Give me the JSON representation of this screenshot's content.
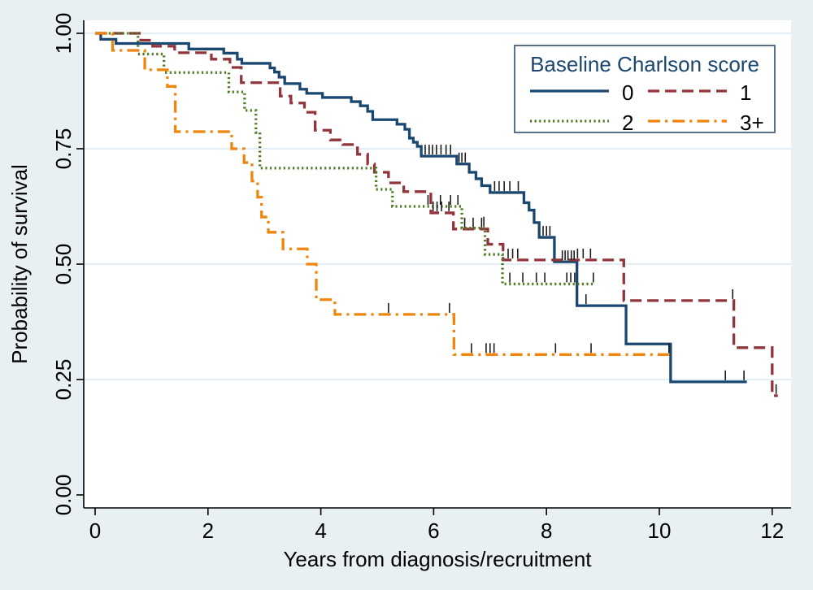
{
  "figure": {
    "background_color": "#e9f0f3",
    "plot_background": "#ffffff",
    "gridline_color": "#dae7f1",
    "axis_color": "#000000",
    "censor_mark_color": "#1c1c1c",
    "legend_border_color": "#5b718a"
  },
  "chart_data": {
    "type": "line",
    "subtype": "kaplan-meier-survival-step",
    "title": "",
    "xlabel": "Years from diagnosis/recruitment",
    "ylabel": "Probability of survival",
    "xlim": [
      0,
      12.4
    ],
    "ylim": [
      0,
      1
    ],
    "xticks": [
      0,
      2,
      4,
      6,
      8,
      10,
      12
    ],
    "yticks": [
      0,
      0.25,
      0.5,
      0.75,
      1
    ],
    "ytick_labels": [
      "0.00",
      "0.25",
      "0.50",
      "0.75",
      "1.00"
    ],
    "grid": "horizontal gridlines at 0.25, 0.50, 0.75, 1.00",
    "legend": {
      "title": "Baseline Charlson score",
      "position": "top-right",
      "entries": [
        "0",
        "1",
        "2",
        "3+"
      ]
    },
    "series": [
      {
        "name": "0",
        "color": "#1a476f",
        "dash": "solid",
        "end_time": 11.55,
        "points": [
          [
            0,
            1
          ],
          [
            0.1,
            0.987
          ],
          [
            0.37,
            0.978
          ],
          [
            1.66,
            0.966
          ],
          [
            2.28,
            0.957
          ],
          [
            2.52,
            0.944
          ],
          [
            2.6,
            0.935
          ],
          [
            3.1,
            0.925
          ],
          [
            3.18,
            0.916
          ],
          [
            3.26,
            0.905
          ],
          [
            3.36,
            0.891
          ],
          [
            3.63,
            0.879
          ],
          [
            3.75,
            0.87
          ],
          [
            4.03,
            0.861
          ],
          [
            4.54,
            0.852
          ],
          [
            4.7,
            0.843
          ],
          [
            4.83,
            0.831
          ],
          [
            4.92,
            0.813
          ],
          [
            5.35,
            0.803
          ],
          [
            5.49,
            0.792
          ],
          [
            5.57,
            0.773
          ],
          [
            5.64,
            0.764
          ],
          [
            5.71,
            0.755
          ],
          [
            5.78,
            0.734
          ],
          [
            6.41,
            0.717
          ],
          [
            6.63,
            0.699
          ],
          [
            6.75,
            0.685
          ],
          [
            6.85,
            0.67
          ],
          [
            7.0,
            0.655
          ],
          [
            7.6,
            0.633
          ],
          [
            7.69,
            0.617
          ],
          [
            7.78,
            0.59
          ],
          [
            7.87,
            0.558
          ],
          [
            8.14,
            0.505
          ],
          [
            8.54,
            0.41
          ],
          [
            9.41,
            0.327
          ],
          [
            10.2,
            0.245
          ]
        ],
        "censor_marks": [
          [
            5.85,
            0.734
          ],
          [
            5.92,
            0.734
          ],
          [
            5.98,
            0.734
          ],
          [
            6.05,
            0.734
          ],
          [
            6.13,
            0.734
          ],
          [
            6.22,
            0.734
          ],
          [
            6.3,
            0.734
          ],
          [
            6.45,
            0.717
          ],
          [
            6.5,
            0.717
          ],
          [
            6.56,
            0.717
          ],
          [
            7.08,
            0.655
          ],
          [
            7.16,
            0.655
          ],
          [
            7.25,
            0.655
          ],
          [
            7.35,
            0.655
          ],
          [
            7.5,
            0.655
          ],
          [
            7.94,
            0.558
          ],
          [
            8.0,
            0.558
          ],
          [
            8.06,
            0.558
          ],
          [
            8.28,
            0.505
          ],
          [
            8.33,
            0.505
          ],
          [
            8.38,
            0.505
          ],
          [
            8.44,
            0.505
          ],
          [
            8.49,
            0.505
          ],
          [
            8.7,
            0.41
          ],
          [
            11.17,
            0.245
          ],
          [
            11.5,
            0.245
          ]
        ]
      },
      {
        "name": "1",
        "color": "#90353b",
        "dash": "dash",
        "end_time": 12.1,
        "points": [
          [
            0,
            1
          ],
          [
            0.81,
            0.985
          ],
          [
            1.02,
            0.972
          ],
          [
            1.41,
            0.958
          ],
          [
            2.06,
            0.944
          ],
          [
            2.39,
            0.926
          ],
          [
            2.59,
            0.893
          ],
          [
            3.28,
            0.864
          ],
          [
            3.47,
            0.849
          ],
          [
            3.71,
            0.829
          ],
          [
            3.9,
            0.79
          ],
          [
            4.17,
            0.769
          ],
          [
            4.39,
            0.759
          ],
          [
            4.65,
            0.738
          ],
          [
            4.83,
            0.717
          ],
          [
            4.95,
            0.699
          ],
          [
            5.2,
            0.676
          ],
          [
            5.47,
            0.657
          ],
          [
            5.95,
            0.611
          ],
          [
            6.35,
            0.576
          ],
          [
            6.96,
            0.543
          ],
          [
            7.23,
            0.509
          ],
          [
            9.37,
            0.421
          ],
          [
            11.32,
            0.319
          ],
          [
            12.0,
            0.215
          ]
        ],
        "censor_marks": [
          [
            5.99,
            0.611
          ],
          [
            6.06,
            0.611
          ],
          [
            6.14,
            0.611
          ],
          [
            6.27,
            0.611
          ],
          [
            6.55,
            0.576
          ],
          [
            6.7,
            0.576
          ],
          [
            6.85,
            0.576
          ],
          [
            7.32,
            0.509
          ],
          [
            7.4,
            0.509
          ],
          [
            7.49,
            0.509
          ],
          [
            8.55,
            0.509
          ],
          [
            8.65,
            0.509
          ],
          [
            8.78,
            0.509
          ],
          [
            11.3,
            0.421
          ],
          [
            12.07,
            0.215
          ]
        ]
      },
      {
        "name": "2",
        "color": "#4f7a22",
        "dash": "dot",
        "end_time": 8.87,
        "points": [
          [
            0,
            1
          ],
          [
            0.76,
            0.955
          ],
          [
            1.22,
            0.915
          ],
          [
            2.37,
            0.873
          ],
          [
            2.65,
            0.833
          ],
          [
            2.85,
            0.785
          ],
          [
            2.92,
            0.708
          ],
          [
            4.98,
            0.662
          ],
          [
            5.27,
            0.625
          ],
          [
            6.5,
            0.578
          ],
          [
            6.91,
            0.521
          ],
          [
            7.22,
            0.457
          ]
        ],
        "censor_marks": [
          [
            5.9,
            0.625
          ],
          [
            6.12,
            0.625
          ],
          [
            6.3,
            0.625
          ],
          [
            6.43,
            0.625
          ],
          [
            6.89,
            0.578
          ],
          [
            7.35,
            0.457
          ],
          [
            7.58,
            0.457
          ],
          [
            7.82,
            0.457
          ],
          [
            7.97,
            0.457
          ],
          [
            8.36,
            0.457
          ],
          [
            8.43,
            0.457
          ],
          [
            8.5,
            0.457
          ],
          [
            8.83,
            0.457
          ]
        ]
      },
      {
        "name": "3+",
        "color": "#ee850d",
        "dash": "dashdot",
        "end_time": 10.17,
        "points": [
          [
            0,
            1
          ],
          [
            0.31,
            0.963
          ],
          [
            0.88,
            0.921
          ],
          [
            1.28,
            0.885
          ],
          [
            1.42,
            0.787
          ],
          [
            2.42,
            0.75
          ],
          [
            2.64,
            0.72
          ],
          [
            2.78,
            0.68
          ],
          [
            2.88,
            0.645
          ],
          [
            2.95,
            0.602
          ],
          [
            3.07,
            0.569
          ],
          [
            3.33,
            0.533
          ],
          [
            3.76,
            0.5
          ],
          [
            3.92,
            0.423
          ],
          [
            4.25,
            0.391
          ],
          [
            6.36,
            0.304
          ]
        ],
        "censor_marks": [
          [
            5.2,
            0.391
          ],
          [
            6.28,
            0.391
          ],
          [
            6.67,
            0.304
          ],
          [
            6.93,
            0.304
          ],
          [
            7.0,
            0.304
          ],
          [
            7.07,
            0.304
          ],
          [
            8.16,
            0.304
          ],
          [
            8.79,
            0.304
          ],
          [
            10.17,
            0.304
          ]
        ]
      }
    ]
  }
}
